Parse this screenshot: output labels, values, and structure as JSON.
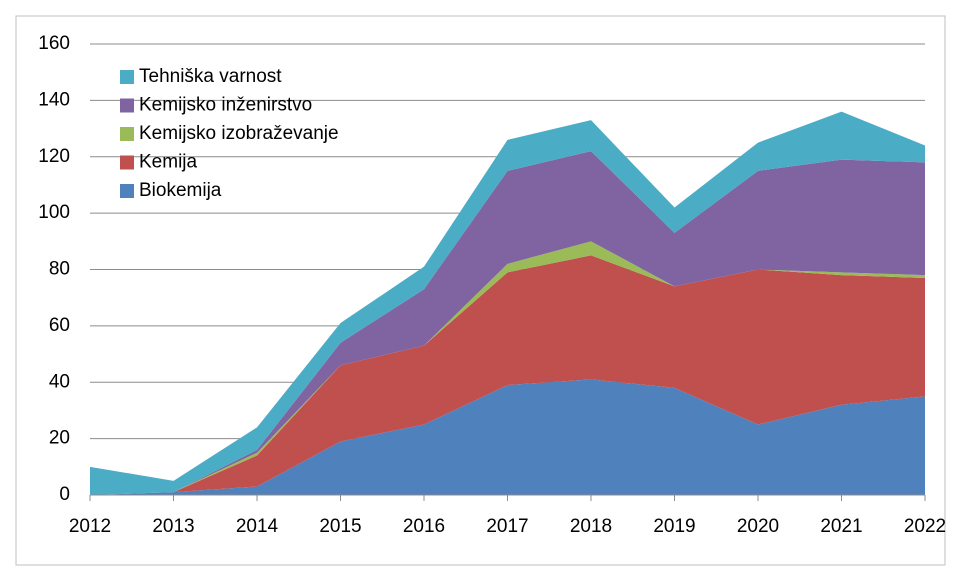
{
  "chart_data": {
    "type": "stacked_area",
    "categories": [
      "2012",
      "2013",
      "2014",
      "2015",
      "2016",
      "2017",
      "2018",
      "2019",
      "2020",
      "2021",
      "2022"
    ],
    "series": [
      {
        "name": "Biokemija",
        "color": "#4f81bd",
        "values": [
          0,
          1,
          3,
          19,
          25,
          39,
          41,
          38,
          25,
          32,
          35
        ]
      },
      {
        "name": "Kemija",
        "color": "#c0504d",
        "values": [
          0,
          0,
          11,
          27,
          28,
          40,
          44,
          36,
          55,
          46,
          42
        ]
      },
      {
        "name": "Kemijsko izobraževanje",
        "color": "#9bbb59",
        "values": [
          0,
          0,
          1,
          0,
          0,
          3,
          5,
          0,
          0,
          1,
          1
        ]
      },
      {
        "name": "Kemijsko inženirstvo",
        "color": "#8064a2",
        "values": [
          0,
          0,
          1,
          8,
          20,
          33,
          32,
          19,
          35,
          40,
          40
        ]
      },
      {
        "name": "Tehniška varnost",
        "color": "#4bacc6",
        "values": [
          10,
          4,
          8,
          7,
          8,
          11,
          11,
          9,
          10,
          17,
          6
        ]
      }
    ],
    "ylim": [
      0,
      160
    ],
    "yticks": [
      0,
      20,
      40,
      60,
      80,
      100,
      120,
      140,
      160
    ],
    "grid": true,
    "legend": "upper left"
  }
}
